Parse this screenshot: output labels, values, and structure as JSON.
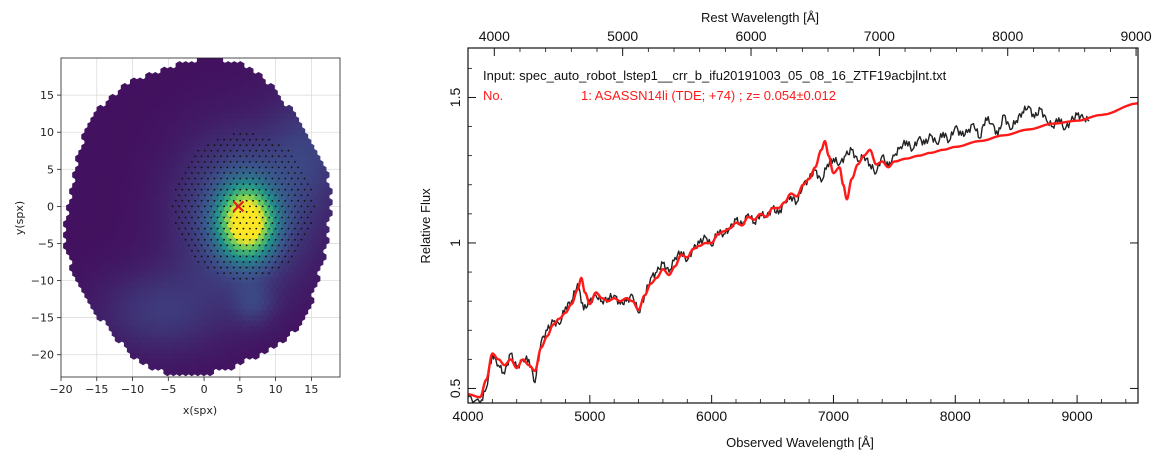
{
  "chart_data": [
    {
      "type": "heatmap",
      "xlabel": "x(spx)",
      "ylabel": "y(spx)",
      "xlim": [
        -20,
        19
      ],
      "ylim": [
        -23,
        20
      ],
      "x_ticks": [
        -20,
        -15,
        -10,
        -5,
        0,
        5,
        10,
        15
      ],
      "y_ticks": [
        15,
        10,
        5,
        0,
        -5,
        -10,
        -15,
        -20
      ],
      "grid": true,
      "colormap": [
        "#440154",
        "#3b528b",
        "#21918c",
        "#5ec962",
        "#fde725"
      ],
      "blobs": [
        {
          "x": 6,
          "y": -2,
          "sx": 2.4,
          "sy": 3.0,
          "amp": 1.0
        },
        {
          "x": 5.5,
          "y": -1,
          "sx": 6,
          "sy": 7,
          "amp": 0.25
        },
        {
          "x": -6,
          "y": -14,
          "sx": 6,
          "sy": 4,
          "amp": 0.12
        },
        {
          "x": 15,
          "y": 8,
          "sx": 4,
          "sy": 6,
          "amp": 0.12
        },
        {
          "x": 7,
          "y": -13,
          "sx": 2,
          "sy": 2,
          "amp": 0.1
        }
      ],
      "marker": {
        "x": 4.8,
        "y": 0,
        "symbol": "x",
        "color": "#e02020"
      },
      "dot_region": {
        "cx": 5.5,
        "cy": 0,
        "radius": 10
      }
    },
    {
      "type": "line",
      "top_axis_label": "Rest Wavelength [Å]",
      "xlabel": "Observed Wavelength [Å]",
      "ylabel": "Relative Flux",
      "xlim": [
        4000,
        9500
      ],
      "ylim": [
        0.45,
        1.67
      ],
      "top_xlim": [
        3795,
        9015
      ],
      "x_ticks": [
        "4000",
        "5000",
        "6000",
        "7000",
        "8000",
        "9000"
      ],
      "top_x_ticks": [
        "4000",
        "5000",
        "6000",
        "7000",
        "8000",
        "9000"
      ],
      "y_ticks": [
        "0.5",
        "1",
        "1.5"
      ],
      "annotations": {
        "input_line": "Input: spec_auto_robot_lstep1__crr_b_ifu20191003_05_08_16_ZTF19acbjlnt.txt",
        "match_prefix": "No.",
        "match_line": "1: ASASSN14li (TDE; +74) ; z= 0.054±0.012"
      },
      "series": [
        {
          "color": "#222222",
          "x": [
            4000,
            4100,
            4150,
            4200,
            4250,
            4300,
            4350,
            4400,
            4450,
            4500,
            4550,
            4600,
            4650,
            4700,
            4750,
            4800,
            4850,
            4900,
            4950,
            5000,
            5050,
            5100,
            5150,
            5200,
            5250,
            5300,
            5350,
            5400,
            5450,
            5500,
            5550,
            5600,
            5650,
            5700,
            5750,
            5800,
            5850,
            5900,
            5950,
            6000,
            6050,
            6100,
            6150,
            6200,
            6250,
            6300,
            6350,
            6400,
            6450,
            6500,
            6550,
            6600,
            6650,
            6700,
            6750,
            6800,
            6850,
            6900,
            6950,
            7000,
            7050,
            7100,
            7150,
            7200,
            7250,
            7300,
            7350,
            7400,
            7450,
            7500,
            7550,
            7600,
            7650,
            7700,
            7750,
            7800,
            7850,
            7900,
            7950,
            8000,
            8050,
            8100,
            8150,
            8200,
            8250,
            8300,
            8350,
            8400,
            8450,
            8500,
            8550,
            8600,
            8650,
            8700,
            8750,
            8800,
            8850,
            8900,
            8950,
            9000,
            9050,
            9100
          ],
          "values": [
            0.47,
            0.45,
            0.5,
            0.62,
            0.58,
            0.55,
            0.62,
            0.57,
            0.6,
            0.6,
            0.52,
            0.66,
            0.7,
            0.73,
            0.72,
            0.78,
            0.8,
            0.86,
            0.77,
            0.8,
            0.82,
            0.8,
            0.81,
            0.82,
            0.79,
            0.8,
            0.82,
            0.76,
            0.82,
            0.88,
            0.9,
            0.93,
            0.9,
            0.95,
            0.97,
            0.94,
            0.98,
            1.0,
            1.02,
            0.99,
            1.04,
            1.03,
            1.05,
            1.08,
            1.06,
            1.1,
            1.07,
            1.1,
            1.09,
            1.12,
            1.1,
            1.14,
            1.16,
            1.14,
            1.2,
            1.22,
            1.25,
            1.21,
            1.27,
            1.29,
            1.27,
            1.3,
            1.32,
            1.28,
            1.3,
            1.27,
            1.24,
            1.3,
            1.26,
            1.3,
            1.33,
            1.35,
            1.32,
            1.36,
            1.34,
            1.37,
            1.34,
            1.38,
            1.35,
            1.4,
            1.37,
            1.38,
            1.41,
            1.36,
            1.43,
            1.41,
            1.37,
            1.44,
            1.39,
            1.42,
            1.45,
            1.47,
            1.43,
            1.46,
            1.42,
            1.4,
            1.43,
            1.39,
            1.42,
            1.44,
            1.43,
            1.42
          ]
        },
        {
          "color": "#ff1a1a",
          "x": [
            4000,
            4100,
            4150,
            4200,
            4250,
            4300,
            4350,
            4400,
            4450,
            4500,
            4550,
            4600,
            4650,
            4700,
            4750,
            4800,
            4850,
            4900,
            4930,
            4960,
            5000,
            5050,
            5100,
            5150,
            5200,
            5250,
            5300,
            5350,
            5400,
            5450,
            5500,
            5550,
            5600,
            5650,
            5700,
            5750,
            5800,
            5850,
            5900,
            5950,
            6000,
            6050,
            6100,
            6150,
            6200,
            6250,
            6300,
            6350,
            6400,
            6450,
            6500,
            6550,
            6600,
            6650,
            6700,
            6750,
            6800,
            6850,
            6900,
            6930,
            6960,
            7000,
            7050,
            7080,
            7110,
            7150,
            7200,
            7250,
            7300,
            7350,
            7400,
            7450,
            7500,
            7600,
            7700,
            7800,
            7900,
            8000,
            8200,
            8400,
            8600,
            8800,
            9000,
            9200,
            9500
          ],
          "values": [
            0.48,
            0.47,
            0.53,
            0.62,
            0.6,
            0.58,
            0.6,
            0.57,
            0.6,
            0.58,
            0.56,
            0.64,
            0.68,
            0.72,
            0.74,
            0.76,
            0.79,
            0.84,
            0.88,
            0.83,
            0.79,
            0.83,
            0.81,
            0.8,
            0.81,
            0.8,
            0.81,
            0.8,
            0.77,
            0.82,
            0.86,
            0.88,
            0.91,
            0.89,
            0.92,
            0.96,
            0.95,
            0.98,
            0.99,
            1.0,
            1.0,
            1.03,
            1.04,
            1.05,
            1.07,
            1.06,
            1.09,
            1.08,
            1.1,
            1.09,
            1.12,
            1.12,
            1.14,
            1.17,
            1.16,
            1.2,
            1.22,
            1.26,
            1.32,
            1.35,
            1.3,
            1.24,
            1.26,
            1.2,
            1.15,
            1.22,
            1.27,
            1.3,
            1.32,
            1.27,
            1.28,
            1.26,
            1.28,
            1.29,
            1.3,
            1.31,
            1.32,
            1.33,
            1.35,
            1.37,
            1.39,
            1.41,
            1.42,
            1.44,
            1.48
          ]
        }
      ]
    }
  ]
}
